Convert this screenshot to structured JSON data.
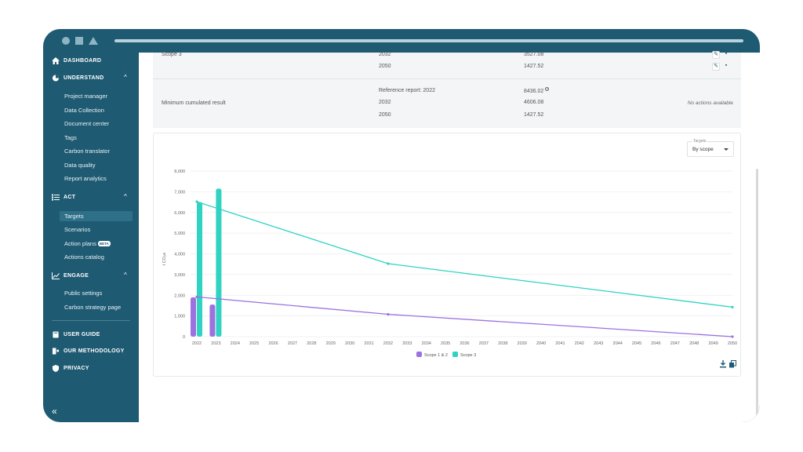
{
  "sidebar": {
    "dashboard": "DASHBOARD",
    "understand": "UNDERSTAND",
    "understand_items": [
      "Project manager",
      "Data Collection",
      "Document center",
      "Tags",
      "Carbon translator",
      "Data quality",
      "Report analytics"
    ],
    "act": "ACT",
    "act_items": [
      "Targets",
      "Scenarios",
      "Action plans",
      "Actions catalog"
    ],
    "beta": "BETA",
    "engage": "ENGAGE",
    "engage_items": [
      "Public settings",
      "Carbon strategy page"
    ],
    "user_guide": "USER GUIDE",
    "methodology": "OUR METHODOLOGY",
    "privacy": "PRIVACY",
    "collapse": "«"
  },
  "table": {
    "row1": {
      "label": "Scope 3",
      "years": [
        "2032",
        "2050"
      ],
      "values": [
        "3527.08",
        "1427.52"
      ]
    },
    "row2": {
      "label": "Minimum cumulated result",
      "years": [
        "Reference report: 2022",
        "2032",
        "2050"
      ],
      "values": [
        "8436.02",
        "4606.08",
        "1427.52"
      ],
      "note": "No actions available"
    }
  },
  "selector": {
    "label": "Targets",
    "value": "By scope"
  },
  "chart_data": {
    "type": "bar",
    "ylabel": "t CO₂e",
    "ylim": [
      0,
      8000
    ],
    "yticks": [
      0,
      1000,
      2000,
      3000,
      4000,
      5000,
      6000,
      7000,
      8000
    ],
    "ytick_labels": [
      "0",
      "1,000",
      "2,000",
      "3,000",
      "4,000",
      "5,000",
      "6,000",
      "7,000",
      "8,000"
    ],
    "categories": [
      "2022",
      "2023",
      "2024",
      "2025",
      "2026",
      "2027",
      "2028",
      "2029",
      "2030",
      "2031",
      "2032",
      "2033",
      "2034",
      "2035",
      "2036",
      "2037",
      "2038",
      "2039",
      "2040",
      "2041",
      "2042",
      "2043",
      "2044",
      "2045",
      "2046",
      "2047",
      "2048",
      "2049",
      "2050"
    ],
    "bars": [
      {
        "name": "Scope 1 & 2",
        "color": "#9b72e0",
        "values": {
          "2022": 1900,
          "2023": 1550
        }
      },
      {
        "name": "Scope 3",
        "color": "#2ed3c2",
        "values": {
          "2022": 6500,
          "2023": 7150
        }
      }
    ],
    "lines": [
      {
        "name": "Scope 1 & 2",
        "color": "#9b72e0",
        "points": [
          [
            "2022",
            1920
          ],
          [
            "2032",
            1080
          ],
          [
            "2050",
            0
          ]
        ]
      },
      {
        "name": "Scope 3",
        "color": "#2ed3c2",
        "points": [
          [
            "2022",
            6520
          ],
          [
            "2032",
            3527
          ],
          [
            "2050",
            1428
          ]
        ]
      }
    ],
    "legend": [
      "Scope 1 & 2",
      "Scope 3"
    ],
    "legend_position": "bottom"
  }
}
